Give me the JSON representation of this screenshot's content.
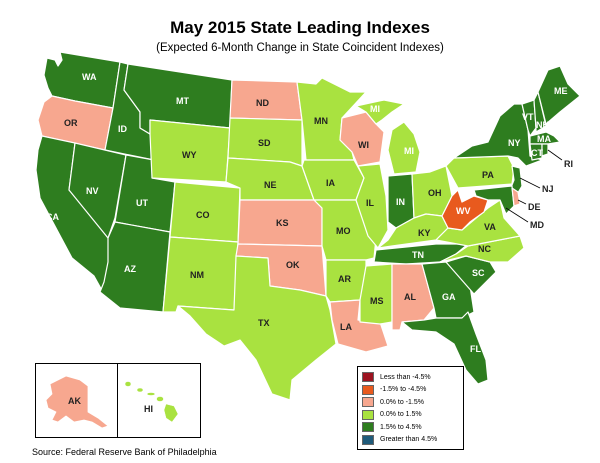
{
  "title": "May 2015 State Leading Indexes",
  "subtitle": "(Expected 6-Month Change in State Coincident Indexes)",
  "source": "Source: Federal Reserve Bank of Philadelphia",
  "colors": {
    "lt_neg45": "#9c1320",
    "neg15_neg45": "#e85a1e",
    "zero_neg15": "#f7a78f",
    "zero_15": "#a9e240",
    "p15_45": "#2e7d1f",
    "gt45": "#1f5b7a"
  },
  "legend": [
    {
      "label": "Less than -4.5%",
      "color": "#9c1320"
    },
    {
      "label": "-1.5% to -4.5%",
      "color": "#e85a1e"
    },
    {
      "label": "0.0% to -1.5%",
      "color": "#f7a78f"
    },
    {
      "label": "0.0% to  1.5%",
      "color": "#a9e240"
    },
    {
      "label": "1.5% to  4.5%",
      "color": "#2e7d1f"
    },
    {
      "label": "Greater than 4.5%",
      "color": "#1f5b7a"
    }
  ],
  "states": {
    "WA": {
      "label": "WA",
      "category": "1.5% to  4.5%"
    },
    "OR": {
      "label": "OR",
      "category": "0.0% to -1.5%"
    },
    "CA": {
      "label": "CA",
      "category": "1.5% to  4.5%"
    },
    "ID": {
      "label": "ID",
      "category": "1.5% to  4.5%"
    },
    "NV": {
      "label": "NV",
      "category": "1.5% to  4.5%"
    },
    "UT": {
      "label": "UT",
      "category": "1.5% to  4.5%"
    },
    "AZ": {
      "label": "AZ",
      "category": "1.5% to  4.5%"
    },
    "MT": {
      "label": "MT",
      "category": "1.5% to  4.5%"
    },
    "WY": {
      "label": "WY",
      "category": "0.0% to  1.5%"
    },
    "CO": {
      "label": "CO",
      "category": "0.0% to  1.5%"
    },
    "NM": {
      "label": "NM",
      "category": "0.0% to  1.5%"
    },
    "ND": {
      "label": "ND",
      "category": "0.0% to -1.5%"
    },
    "SD": {
      "label": "SD",
      "category": "0.0% to  1.5%"
    },
    "NE": {
      "label": "NE",
      "category": "0.0% to  1.5%"
    },
    "KS": {
      "label": "KS",
      "category": "0.0% to -1.5%"
    },
    "OK": {
      "label": "OK",
      "category": "0.0% to -1.5%"
    },
    "TX": {
      "label": "TX",
      "category": "0.0% to  1.5%"
    },
    "MN": {
      "label": "MN",
      "category": "0.0% to  1.5%"
    },
    "IA": {
      "label": "IA",
      "category": "0.0% to  1.5%"
    },
    "MO": {
      "label": "MO",
      "category": "0.0% to  1.5%"
    },
    "AR": {
      "label": "AR",
      "category": "0.0% to  1.5%"
    },
    "LA": {
      "label": "LA",
      "category": "0.0% to -1.5%"
    },
    "WI": {
      "label": "WI",
      "category": "0.0% to -1.5%"
    },
    "IL": {
      "label": "IL",
      "category": "0.0% to  1.5%"
    },
    "MI": {
      "label": "MI",
      "category": "0.0% to  1.5%"
    },
    "IN": {
      "label": "IN",
      "category": "1.5% to  4.5%"
    },
    "OH": {
      "label": "OH",
      "category": "0.0% to  1.5%"
    },
    "KY": {
      "label": "KY",
      "category": "0.0% to  1.5%"
    },
    "TN": {
      "label": "TN",
      "category": "1.5% to  4.5%"
    },
    "MS": {
      "label": "MS",
      "category": "0.0% to  1.5%"
    },
    "AL": {
      "label": "AL",
      "category": "0.0% to -1.5%"
    },
    "GA": {
      "label": "GA",
      "category": "1.5% to  4.5%"
    },
    "FL": {
      "label": "FL",
      "category": "1.5% to  4.5%"
    },
    "SC": {
      "label": "SC",
      "category": "1.5% to  4.5%"
    },
    "NC": {
      "label": "NC",
      "category": "0.0% to  1.5%"
    },
    "VA": {
      "label": "VA",
      "category": "0.0% to  1.5%"
    },
    "WV": {
      "label": "WV",
      "category": "-1.5% to -4.5%"
    },
    "PA": {
      "label": "PA",
      "category": "0.0% to  1.5%"
    },
    "NY": {
      "label": "NY",
      "category": "1.5% to  4.5%"
    },
    "VT": {
      "label": "VT",
      "category": "1.5% to  4.5%"
    },
    "NH": {
      "label": "NH",
      "category": "1.5% to  4.5%"
    },
    "ME": {
      "label": "ME",
      "category": "1.5% to  4.5%"
    },
    "MA": {
      "label": "MA",
      "category": "1.5% to  4.5%"
    },
    "CT": {
      "label": "CT",
      "category": "1.5% to  4.5%"
    },
    "RI": {
      "label": "RI",
      "category": "1.5% to  4.5%"
    },
    "NJ": {
      "label": "NJ",
      "category": "1.5% to  4.5%"
    },
    "DE": {
      "label": "DE",
      "category": "0.0% to -1.5%"
    },
    "MD": {
      "label": "MD",
      "category": "1.5% to  4.5%"
    },
    "AK": {
      "label": "AK",
      "category": "0.0% to -1.5%"
    },
    "HI": {
      "label": "HI",
      "category": "0.0% to  1.5%"
    }
  }
}
